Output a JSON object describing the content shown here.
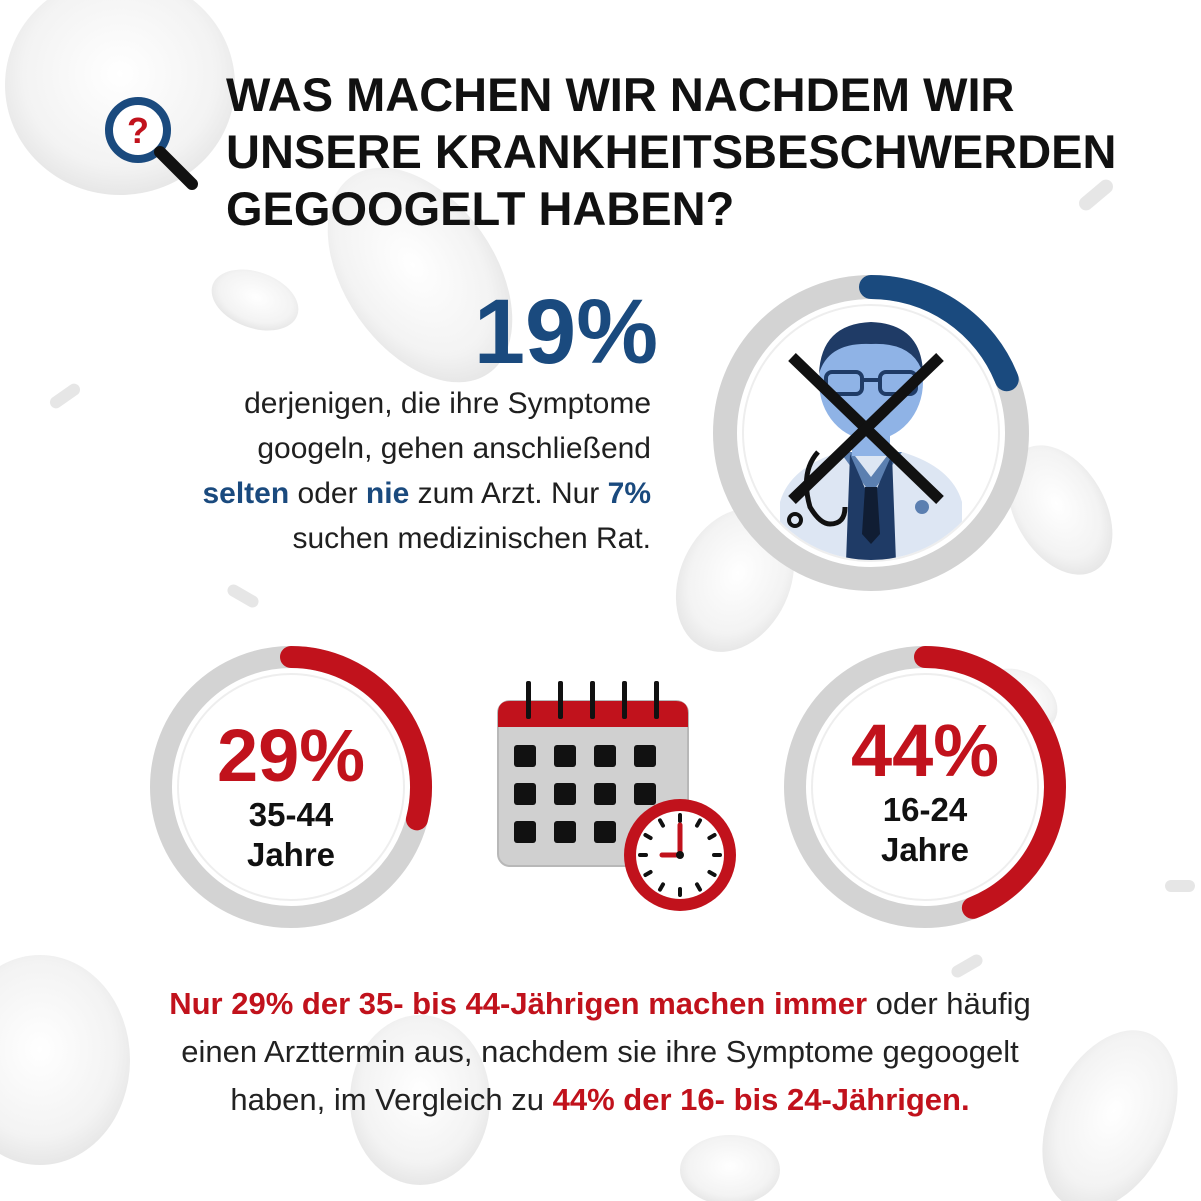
{
  "title": {
    "line1": "WAS MACHEN WIR NACHDEM WIR",
    "line2": "UNSERE KRANKHEITSBESCHWERDEN",
    "line3": "GEGOOGELT HABEN?"
  },
  "question_icon_mark": "?",
  "stat_main": {
    "value": "19%",
    "fraction": 0.19,
    "line1": "derjenigen, die ihre Symptome",
    "line2": "googeln, gehen anschließend",
    "line3_strong1": "selten",
    "line3_text1": " oder ",
    "line3_strong2": "nie",
    "line3_text2": " zum Arzt. Nur ",
    "line3_strong3": "7%",
    "line4": "suchen medizinischen Rat."
  },
  "ring_left": {
    "value": "29%",
    "fraction": 0.29,
    "age": "35-44",
    "unit": "Jahre"
  },
  "ring_right": {
    "value": "44%",
    "fraction": 0.44,
    "age": "16-24",
    "unit": "Jahre"
  },
  "bottom": {
    "l1_strong": "Nur 29% der 35- bis 44-Jährigen machen immer",
    "l1_text": " oder häufig",
    "l2_text": "einen Arzttermin aus, nachdem sie ihre Symptome gegoogelt",
    "l3_text": "haben, im Vergleich zu ",
    "l3_strong": "44% der 16- bis 24-Jährigen."
  },
  "colors": {
    "blue": "#1a4a7e",
    "red": "#c1121c",
    "ring_grey": "#d3d3d3",
    "icons": [
      "question-search-icon",
      "doctor-crossed-icon",
      "calendar-icon",
      "clock-icon"
    ]
  }
}
